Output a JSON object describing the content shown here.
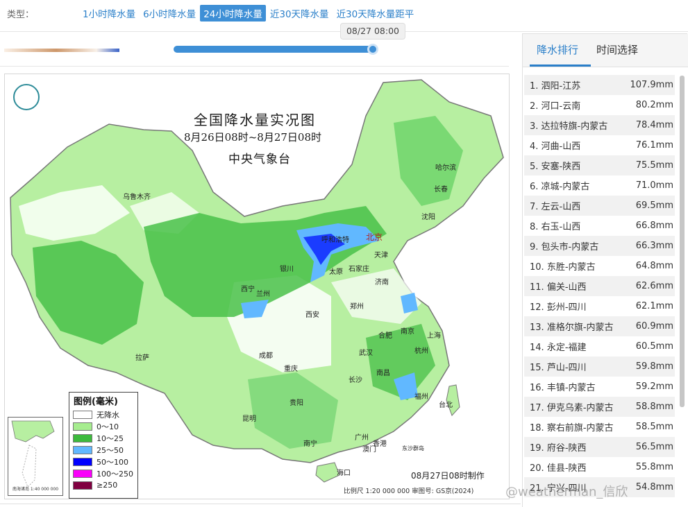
{
  "filter": {
    "label": "类型：",
    "tabs": [
      "1小时降水量",
      "6小时降水量",
      "24小时降水量",
      "近30天降水量",
      "近30天降水量距平"
    ],
    "active_tab": "24小时降水量"
  },
  "time_slider": {
    "tooltip": "08/27 08:00",
    "position_fraction": 1.0
  },
  "map": {
    "title": "全国降水量实况图",
    "subtitle": "8月26日08时~8月27日08时",
    "agency": "中央气象台",
    "capital": "北京",
    "cities": [
      "乌鲁木齐",
      "哈尔滨",
      "长春",
      "沈阳",
      "呼和浩特",
      "天津",
      "银川",
      "太原",
      "石家庄",
      "济南",
      "西宁",
      "兰州",
      "西安",
      "郑州",
      "合肥",
      "南京",
      "上海",
      "杭州",
      "成都",
      "武汉",
      "重庆",
      "长沙",
      "南昌",
      "福州",
      "台北",
      "拉萨",
      "贵阳",
      "昆明",
      "南宁",
      "广州",
      "香港",
      "澳门",
      "海口",
      "东沙群岛"
    ],
    "legend_title": "图例(毫米)",
    "legend": [
      {
        "label": "无降水",
        "color": "#ffffff"
      },
      {
        "label": "0～10",
        "color": "#a6ed8f"
      },
      {
        "label": "10～25",
        "color": "#3dba3d"
      },
      {
        "label": "25～50",
        "color": "#61b8ff"
      },
      {
        "label": "50～100",
        "color": "#0000ff"
      },
      {
        "label": "100～250",
        "color": "#fa00fa"
      },
      {
        "label": "≥250",
        "color": "#800040"
      }
    ],
    "made_time": "08月27日08时制作",
    "scale_note": "比例尺 1:20 000 000    审图号: GS京(2024)",
    "inset_caption": "南海诸岛 1:40 000 000"
  },
  "right_panel": {
    "tabs": [
      "降水排行",
      "时间选择"
    ],
    "active_tab": "降水排行",
    "ranking": [
      {
        "rank": "1.",
        "name": "泗阳-江苏",
        "value": "107.9mm"
      },
      {
        "rank": "2.",
        "name": "河口-云南",
        "value": "80.2mm"
      },
      {
        "rank": "3.",
        "name": "达拉特旗-内蒙古",
        "value": "78.4mm"
      },
      {
        "rank": "4.",
        "name": "河曲-山西",
        "value": "76.1mm"
      },
      {
        "rank": "5.",
        "name": "安塞-陕西",
        "value": "75.5mm"
      },
      {
        "rank": "6.",
        "name": "凉城-内蒙古",
        "value": "71.0mm"
      },
      {
        "rank": "7.",
        "name": "左云-山西",
        "value": "69.5mm"
      },
      {
        "rank": "8.",
        "name": "右玉-山西",
        "value": "66.8mm"
      },
      {
        "rank": "9.",
        "name": "包头市-内蒙古",
        "value": "66.3mm"
      },
      {
        "rank": "10.",
        "name": "东胜-内蒙古",
        "value": "64.8mm"
      },
      {
        "rank": "11.",
        "name": "偏关-山西",
        "value": "62.6mm"
      },
      {
        "rank": "12.",
        "name": "彭州-四川",
        "value": "62.1mm"
      },
      {
        "rank": "13.",
        "name": "准格尔旗-内蒙古",
        "value": "60.9mm"
      },
      {
        "rank": "14.",
        "name": "永定-福建",
        "value": "60.5mm"
      },
      {
        "rank": "15.",
        "name": "芦山-四川",
        "value": "59.8mm"
      },
      {
        "rank": "16.",
        "name": "丰镇-内蒙古",
        "value": "59.2mm"
      },
      {
        "rank": "17.",
        "name": "伊克乌素-内蒙古",
        "value": "58.8mm"
      },
      {
        "rank": "18.",
        "name": "察右前旗-内蒙古",
        "value": "58.5mm"
      },
      {
        "rank": "19.",
        "name": "府谷-陕西",
        "value": "56.5mm"
      },
      {
        "rank": "20.",
        "name": "佳县-陕西",
        "value": "55.8mm"
      },
      {
        "rank": "21.",
        "name": "宁兴-四川",
        "value": "54.8mm"
      }
    ]
  },
  "watermark": "@weatherman_信欣"
}
